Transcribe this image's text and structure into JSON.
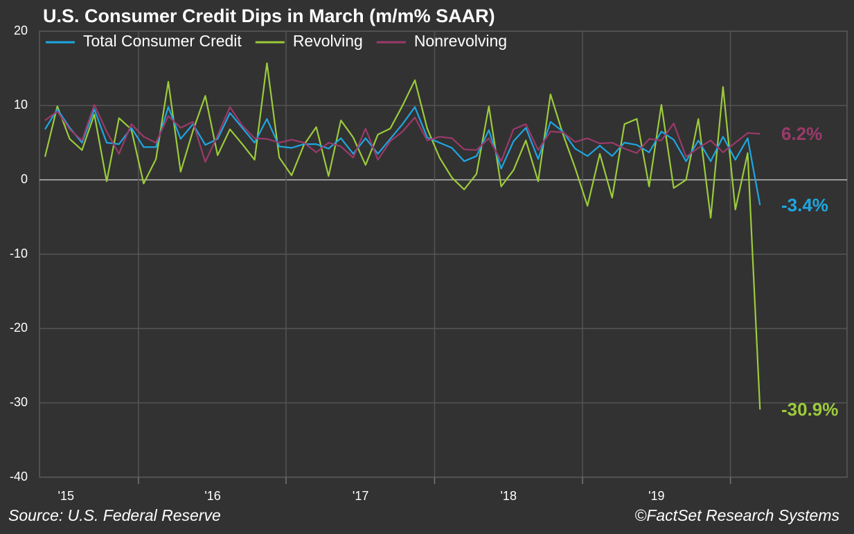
{
  "chart_data": {
    "type": "line",
    "title": "U.S. Consumer Credit Dips in March (m/m% SAAR)",
    "source": "Source: U.S. Federal Reserve",
    "copyright": "©FactSet Research Systems",
    "x": [
      0,
      1,
      2,
      3,
      4,
      5,
      6,
      7,
      8,
      9,
      10,
      11,
      12,
      13,
      14,
      15,
      16,
      17,
      18,
      19,
      20,
      21,
      22,
      23,
      24,
      25,
      26,
      27,
      28,
      29,
      30,
      31,
      32,
      33,
      34,
      35,
      36,
      37,
      38,
      39,
      40,
      41,
      42,
      43,
      44,
      45,
      46,
      47,
      48,
      49,
      50,
      51,
      52,
      53,
      54,
      55,
      56,
      57,
      58
    ],
    "xlim": [
      -0.45,
      65.06
    ],
    "xticks": [
      {
        "value": 1.7,
        "label": "'15"
      },
      {
        "value": 13.6,
        "label": "'16"
      },
      {
        "value": 25.6,
        "label": "'17"
      },
      {
        "value": 37.6,
        "label": "'18"
      },
      {
        "value": 49.6,
        "label": "'19"
      }
    ],
    "xgrid": [
      7.58,
      19.55,
      31.6,
      43.6,
      55.6
    ],
    "ylim": [
      -40,
      20
    ],
    "yticks": [
      -40,
      -30,
      -20,
      -10,
      0,
      10,
      20
    ],
    "grid": true,
    "legend": "top-left",
    "series": [
      {
        "name": "Total Consumer Credit",
        "color": "#1ea7e1",
        "end_label": "-3.4%",
        "values": [
          6.8,
          9.5,
          7,
          5,
          9.5,
          5,
          4.8,
          7,
          4.4,
          4.4,
          9.8,
          5.5,
          7.5,
          4.7,
          5.5,
          9,
          7,
          5,
          8.2,
          4.5,
          4.3,
          4.8,
          4.8,
          4.2,
          5.6,
          3.5,
          5.6,
          3.5,
          5.5,
          7.5,
          9.8,
          5.7,
          5,
          4.3,
          2.5,
          3.2,
          6.7,
          1.5,
          5.2,
          7,
          2.8,
          7.8,
          6.5,
          4.2,
          3.2,
          4.6,
          3.2,
          5,
          4.7,
          3.7,
          6.5,
          5.4,
          2.5,
          5.3,
          2.5,
          5.8,
          2.7,
          5.6,
          -3.4
        ]
      },
      {
        "name": "Revolving",
        "color": "#9ccb3b",
        "end_label": "-30.9%",
        "values": [
          3.1,
          9.9,
          5.5,
          4,
          8.8,
          -0.2,
          8.3,
          6.8,
          -0.5,
          2.8,
          13.2,
          1.1,
          6.6,
          11.3,
          3.3,
          6.8,
          4.8,
          2.7,
          15.7,
          3,
          0.6,
          4.7,
          7.1,
          0.5,
          8,
          5.7,
          2,
          6.1,
          6.9,
          10,
          13.4,
          6.9,
          3,
          0.3,
          -1.3,
          0.8,
          9.9,
          -0.9,
          1.3,
          5.3,
          -0.2,
          11.5,
          6.2,
          1.6,
          -3.5,
          3.5,
          -2.4,
          7.5,
          8.2,
          -0.9,
          10.1,
          -1.1,
          0,
          8.2,
          -5.1,
          12.5,
          -4,
          3.6,
          -30.9
        ]
      },
      {
        "name": "Nonrevolving",
        "color": "#9b3a6a",
        "end_label": "6.2%",
        "values": [
          8,
          9.2,
          6.8,
          5.3,
          10.1,
          6.5,
          3.5,
          7.5,
          5.8,
          5,
          8.6,
          7,
          7.8,
          2.4,
          6,
          9.8,
          7.3,
          5.6,
          5.5,
          5,
          5.4,
          5,
          3.7,
          5,
          4.5,
          3,
          6.9,
          2.7,
          5.2,
          6.5,
          8.4,
          5.3,
          5.8,
          5.6,
          4.1,
          4,
          5.6,
          2.5,
          6.8,
          7.5,
          4,
          6.5,
          6.4,
          5.1,
          5.6,
          4.9,
          5,
          4.2,
          3.6,
          5.5,
          5.3,
          7.6,
          3.1,
          4.3,
          5.3,
          3.7,
          5,
          6.3,
          6.2
        ]
      }
    ]
  }
}
